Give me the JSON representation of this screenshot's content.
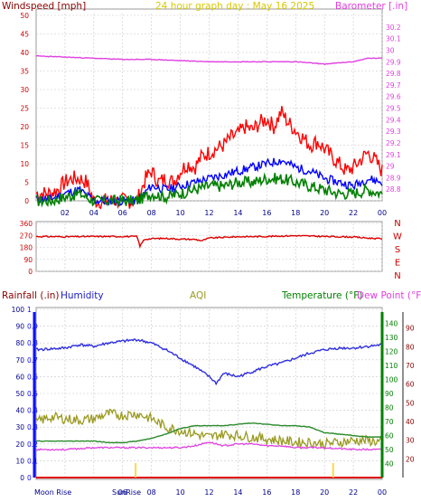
{
  "titles": {
    "top_left": "Windspeed [mph]",
    "top_center": "24 hour graph day : May 16 2025",
    "top_right": "Barometer [.in]",
    "bottom_rainfall": "Rainfall (.in)",
    "bottom_humidity": "Humidity",
    "bottom_aqi": "AQI",
    "bottom_temperature": "Temperature (°F)",
    "bottom_dewpoint": "Dew Point (°F)"
  },
  "colors": {
    "wind_gust": "#ff0000",
    "wind_avg": "#0000ff",
    "wind_speed": "#008000",
    "barometer": "#e040e0",
    "direction": "#dd0000",
    "humidity": "#3030e0",
    "aqi": "#9a9a20",
    "temperature": "#2a8a2a",
    "dewpoint": "#e040e0",
    "rainfall_axis": "#1010ff",
    "temp_axis": "#008000",
    "axis_text": "#8b0000",
    "grid": "#c8c8c8",
    "sun_marker": "#ffd84a"
  },
  "x_ticks": [
    "02",
    "04",
    "06",
    "08",
    "10",
    "12",
    "14",
    "16",
    "18",
    "20",
    "22",
    "00"
  ],
  "bottom_x_labels": {
    "moon_rise": "Moon Rise",
    "sun_rise": "SunRise",
    "sun_set_label": "S"
  },
  "chart_data": [
    {
      "type": "line",
      "name": "wind-and-barometer",
      "xlabel": "",
      "ylabel_left": "Windspeed [mph]",
      "ylabel_right": "Barometer [.in]",
      "x_range_hours": [
        0,
        24
      ],
      "ylim_left": [
        0,
        50
      ],
      "ylim_right": [
        28.7,
        30.3
      ],
      "left_ticks": [
        0,
        5,
        10,
        15,
        20,
        25,
        30,
        35,
        40,
        45,
        50
      ],
      "right_ticks": [
        "28.8",
        "28.9",
        "29",
        "29.1",
        "29.2",
        "29.3",
        "29.4",
        "29.5",
        "29.6",
        "29.7",
        "29.8",
        "29.9",
        "30",
        "30.1",
        "30.2"
      ],
      "series": [
        {
          "name": "gust",
          "axis": "left",
          "x": [
            0,
            1,
            1.5,
            2,
            2.5,
            3,
            3.5,
            4,
            4.5,
            5,
            6,
            7,
            7.3,
            7.6,
            8,
            8.5,
            9,
            9.5,
            10,
            10.5,
            11,
            11.5,
            12,
            12.5,
            13,
            13.5,
            14,
            14.5,
            15,
            15.5,
            16,
            16.5,
            17,
            17.5,
            18,
            18.5,
            19,
            19.5,
            20,
            20.5,
            21,
            21.5,
            22,
            22.5,
            23,
            23.5,
            24
          ],
          "values": [
            2,
            2,
            3,
            5,
            6,
            6,
            5,
            0,
            0,
            0,
            0,
            0,
            3,
            6,
            8,
            5,
            6,
            5,
            8,
            10,
            9,
            12,
            13,
            14,
            15,
            17,
            18,
            20,
            19,
            21,
            22,
            20,
            24,
            21,
            19,
            17,
            15,
            16,
            14,
            12,
            10,
            8,
            9,
            11,
            13,
            11,
            8
          ]
        },
        {
          "name": "average",
          "axis": "left",
          "x": [
            0,
            1,
            2,
            3,
            4,
            7,
            7.5,
            8,
            9,
            10,
            11,
            12,
            13,
            14,
            15,
            16,
            17,
            18,
            19,
            20,
            21,
            22,
            23,
            24
          ],
          "values": [
            0.5,
            0.5,
            2,
            3,
            0,
            0,
            2,
            4,
            3,
            4,
            5,
            6,
            7,
            8,
            9,
            10,
            11,
            9,
            8,
            6,
            5,
            4,
            6,
            5
          ]
        },
        {
          "name": "speed",
          "axis": "left",
          "x": [
            0,
            1,
            2,
            3,
            4,
            7,
            7.5,
            8,
            9,
            10,
            11,
            12,
            13,
            14,
            15,
            16,
            17,
            18,
            19,
            20,
            21,
            22,
            23,
            24
          ],
          "values": [
            0,
            0,
            1,
            2,
            0,
            0,
            1,
            2,
            1,
            2,
            3,
            4,
            4,
            5,
            5,
            6,
            6,
            5,
            4,
            3,
            2,
            2,
            3,
            2
          ]
        },
        {
          "name": "barometer",
          "axis": "right",
          "x": [
            0,
            2,
            4,
            6,
            8,
            10,
            12,
            14,
            16,
            18,
            20,
            22,
            23,
            24
          ],
          "values": [
            29.95,
            29.94,
            29.93,
            29.92,
            29.92,
            29.91,
            29.9,
            29.9,
            29.9,
            29.9,
            29.88,
            29.9,
            29.93,
            29.93
          ]
        }
      ]
    },
    {
      "type": "line",
      "name": "wind-direction",
      "ylabel_right": "N W S E N",
      "ylim": [
        0,
        360
      ],
      "left_ticks": [
        0,
        90,
        180,
        270,
        360
      ],
      "right_labels": [
        "N",
        "W",
        "S",
        "E",
        "N"
      ],
      "series": [
        {
          "name": "direction",
          "x": [
            0,
            2,
            4,
            6,
            7,
            7.2,
            7.5,
            8,
            9,
            10,
            11,
            11.5,
            12,
            14,
            16,
            18,
            20,
            22,
            23,
            24
          ],
          "values": [
            262,
            260,
            262,
            262,
            262,
            190,
            240,
            245,
            248,
            242,
            240,
            230,
            250,
            260,
            262,
            268,
            262,
            258,
            250,
            245
          ]
        }
      ]
    },
    {
      "type": "line",
      "name": "rain-humidity-aqi-temperature",
      "xlabel": "",
      "ylim_rainfall": [
        0,
        1.1
      ],
      "ylim_humidity": [
        0,
        100
      ],
      "ylim_temperature": [
        30,
        150
      ],
      "ylim_dewpoint": [
        10,
        100
      ],
      "rainfall_ticks": [
        "0",
        "0.1",
        "0.2",
        "0.3",
        "0.4",
        "0.5",
        "0.6",
        "0.7",
        "0.8",
        "0.9",
        "1"
      ],
      "humidity_ticks": [
        0,
        10,
        20,
        30,
        40,
        50,
        60,
        70,
        80,
        90,
        100
      ],
      "temperature_ticks": [
        40,
        50,
        60,
        70,
        80,
        90,
        100,
        110,
        120,
        130,
        140
      ],
      "dewpoint_ticks": [
        20,
        30,
        40,
        50,
        60,
        70,
        80,
        90
      ],
      "series": [
        {
          "name": "humidity",
          "x": [
            0,
            2,
            3,
            4,
            5,
            6,
            7,
            8,
            9,
            10,
            11,
            12,
            12.5,
            13,
            14,
            15,
            16,
            17,
            18,
            19,
            20,
            21,
            22,
            23,
            24
          ],
          "values": [
            76,
            77,
            79,
            78,
            80,
            81,
            82,
            80,
            76,
            71,
            66,
            60,
            56,
            62,
            60,
            63,
            66,
            68,
            71,
            74,
            76,
            77,
            77,
            78,
            79
          ]
        },
        {
          "name": "aqi",
          "x": [
            0,
            1,
            2,
            3,
            4,
            5,
            6,
            7,
            8,
            9,
            10,
            11,
            12,
            13,
            14,
            15,
            16,
            17,
            18,
            19,
            20,
            21,
            22,
            23,
            24
          ],
          "values": [
            33,
            36,
            35,
            34,
            35,
            38,
            37,
            38,
            35,
            30,
            28,
            26,
            24,
            26,
            25,
            24,
            23,
            22,
            21,
            21,
            20,
            21,
            22,
            22,
            21
          ]
        },
        {
          "name": "temperature",
          "x": [
            0,
            1,
            2,
            3,
            4,
            5,
            6,
            7,
            8,
            9,
            10,
            11,
            12,
            13,
            14,
            15,
            16,
            17,
            18,
            19,
            20,
            21,
            22,
            23,
            24
          ],
          "values": [
            56,
            56,
            56,
            56,
            56,
            55,
            55,
            56,
            58,
            61,
            65,
            67,
            67,
            67,
            68,
            69,
            68,
            67,
            67,
            66,
            62,
            61,
            60,
            59,
            59
          ]
        },
        {
          "name": "dewpoint",
          "x": [
            0,
            2,
            4,
            6,
            8,
            10,
            11,
            12,
            13,
            14,
            15,
            16,
            17,
            18,
            19,
            20,
            22,
            24
          ],
          "values": [
            25,
            25,
            26,
            26,
            26,
            26,
            27,
            29,
            27,
            28,
            28,
            27,
            27,
            26,
            26,
            26,
            25,
            25
          ]
        },
        {
          "name": "rainfall",
          "x": [
            0,
            24
          ],
          "values": [
            0,
            0
          ]
        }
      ],
      "markers": [
        {
          "name": "sunrise",
          "x": 6.9
        },
        {
          "name": "sunset",
          "x": 20.6
        }
      ]
    }
  ]
}
